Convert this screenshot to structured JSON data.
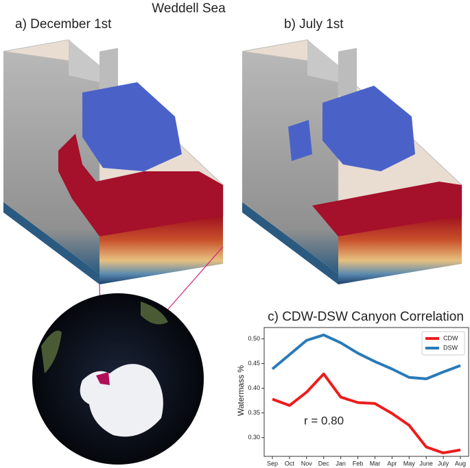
{
  "header": {
    "title": "Weddell Sea"
  },
  "panels": [
    {
      "label": "a) December 1st"
    },
    {
      "label": "b) July 1st"
    }
  ],
  "chart_data": {
    "type": "line",
    "title": "c) CDW-DSW Canyon Correlation",
    "y_label": "Watermass %",
    "annotation": "r = 0.80",
    "categories": [
      "Sep",
      "Oct",
      "Nov",
      "Dec",
      "Jan",
      "Feb",
      "Mar",
      "Apr",
      "May",
      "June",
      "July",
      "Aug"
    ],
    "series": [
      {
        "name": "CDW",
        "color": "#ee1c1c",
        "values": [
          0.378,
          0.365,
          0.392,
          0.429,
          0.382,
          0.371,
          0.369,
          0.349,
          0.325,
          0.281,
          0.269,
          0.275
        ]
      },
      {
        "name": "DSW",
        "color": "#2a7ab8",
        "values": [
          0.439,
          0.468,
          0.497,
          0.508,
          0.492,
          0.471,
          0.454,
          0.439,
          0.422,
          0.419,
          0.433,
          0.446
        ]
      }
    ],
    "ylim": [
      0.262,
      0.523
    ],
    "yticks": [
      {
        "value": 0.3,
        "label": "0.30"
      },
      {
        "value": 0.35,
        "label": "0.35"
      },
      {
        "value": 0.4,
        "label": "0.40"
      },
      {
        "value": 0.45,
        "label": "0.45"
      },
      {
        "value": 0.5,
        "label": "0.50"
      }
    ],
    "legend": "upper right",
    "grid": false
  }
}
